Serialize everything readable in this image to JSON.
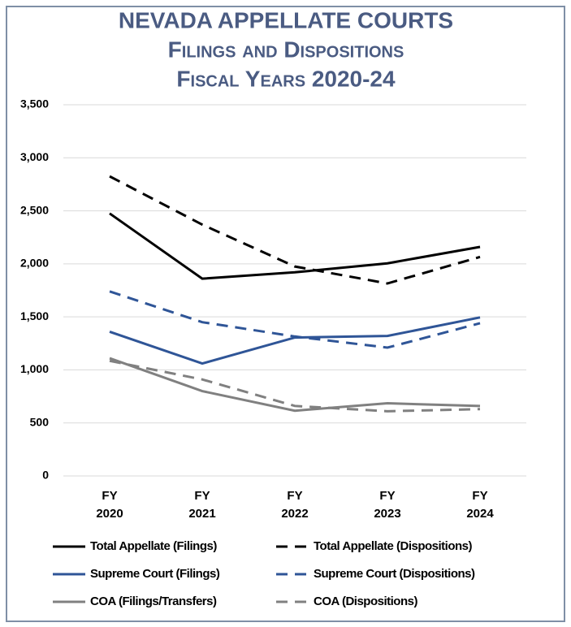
{
  "chart_data": {
    "type": "line",
    "title": "NEVADA APPELLATE COURTS",
    "subtitle": "Filings and Dispositions",
    "subtitle2": "Fiscal Years 2020-24",
    "categories": [
      "FY\n2020",
      "FY\n2021",
      "FY\n2022",
      "FY\n2023",
      "FY\n2024"
    ],
    "ylim": [
      0,
      3500
    ],
    "yticks": [
      0,
      {
        "value": 500,
        "label": "500"
      },
      {
        "value": 1000,
        "label": "1,000"
      },
      {
        "value": 1500,
        "label": "1,500"
      },
      {
        "value": 2000,
        "label": "2,000"
      },
      {
        "value": 2500,
        "label": "2,500"
      },
      {
        "value": 3000,
        "label": "3,000"
      },
      {
        "value": 3500,
        "label": "3,500"
      }
    ],
    "grid": true,
    "series": [
      {
        "name": "Total Appellate (Filings)",
        "color": "#000000",
        "dash": false,
        "values": [
          2475,
          1860,
          1920,
          2005,
          2160
        ]
      },
      {
        "name": "Total Appellate (Dispositions)",
        "color": "#000000",
        "dash": true,
        "values": [
          2825,
          2370,
          1975,
          1815,
          2065
        ]
      },
      {
        "name": "Supreme Court (Filings)",
        "color": "#2f5597",
        "dash": false,
        "values": [
          1360,
          1060,
          1305,
          1320,
          1495
        ]
      },
      {
        "name": "Supreme Court (Dispositions)",
        "color": "#2f5597",
        "dash": true,
        "values": [
          1740,
          1450,
          1315,
          1210,
          1440
        ]
      },
      {
        "name": "COA (Filings/Transfers)",
        "color": "#808080",
        "dash": false,
        "values": [
          1110,
          800,
          615,
          685,
          660
        ]
      },
      {
        "name": "COA (Dispositions)",
        "color": "#808080",
        "dash": true,
        "values": [
          1085,
          910,
          660,
          610,
          630
        ]
      }
    ]
  }
}
